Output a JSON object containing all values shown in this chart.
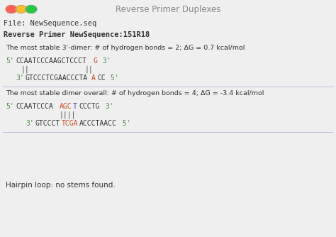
{
  "title": "Reverse Primer Duplexes",
  "title_color": "#888888",
  "window_bg": "#efefef",
  "title_bar_bg": "#e8e8e8",
  "file_bar_bg": "#d4d4d4",
  "primer_bar_bg": "#f5f2dc",
  "content_bg": "#ffffff",
  "section_header_bg": "#dcdcec",
  "hairpin_bar_bg": "#f5f2dc",
  "file_line": "File: NewSequence.seq",
  "primer_line": "Reverse Primer NewSequence:151R18",
  "section1_header": "The most stable 3'-dimer: # of hydrogen bonds = 2; ΔG = 0.7 kcal/mol",
  "section2_header": "The most stable dimer overall: # of hydrogen bonds = 4; ΔG = -3.4 kcal/mol",
  "hairpin_line": "Hairpin loop: no stems found.",
  "text_color": "#333333",
  "teal": "#4a8a4a",
  "red_color": "#cc4422",
  "blue_color": "#3344bb",
  "bond_color": "#555555",
  "title_fontsize": 8.5,
  "bar_fontsize": 7.5,
  "mono_fontsize": 7.0,
  "section_fontsize": 6.8
}
